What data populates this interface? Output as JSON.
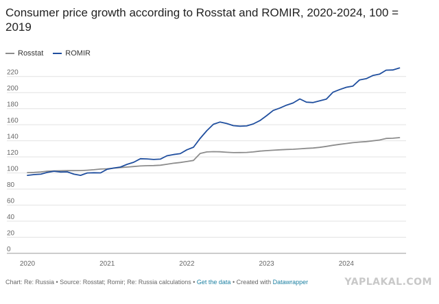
{
  "title": "Consumer price growth according to Rosstat and ROMIR, 2020-2024, 100 = 2019",
  "footer": {
    "prefix": "Chart: Re: Russia • Source: Rosstat; Romir; Re: Russia calculations • ",
    "get_data": "Get the data",
    "sep": " • Created with ",
    "tool": "Datawrapper"
  },
  "watermark": "YAPLAKAL.COM",
  "chart_data": {
    "type": "line",
    "title": "Consumer price growth according to Rosstat and ROMIR, 2020-2024, 100 = 2019",
    "xlabel": "",
    "ylabel": "",
    "xlim": [
      2020.0,
      2024.75
    ],
    "ylim": [
      0,
      230
    ],
    "x_ticks": [
      "2020",
      "2021",
      "2022",
      "2023",
      "2024"
    ],
    "y_ticks": [
      0,
      20,
      40,
      60,
      80,
      100,
      120,
      140,
      160,
      180,
      200,
      220
    ],
    "grid": "horizontal",
    "legend_position": "top-left",
    "series": [
      {
        "name": "Rosstat",
        "color": "#8c8c8c",
        "x": [
          2020.0,
          2020.083,
          2020.167,
          2020.25,
          2020.333,
          2020.417,
          2020.5,
          2020.583,
          2020.667,
          2020.75,
          2020.833,
          2020.917,
          2021.0,
          2021.083,
          2021.167,
          2021.25,
          2021.333,
          2021.417,
          2021.5,
          2021.583,
          2021.667,
          2021.75,
          2021.833,
          2021.917,
          2022.0,
          2022.083,
          2022.167,
          2022.25,
          2022.333,
          2022.417,
          2022.5,
          2022.583,
          2022.667,
          2022.75,
          2022.833,
          2022.917,
          2023.0,
          2023.083,
          2023.167,
          2023.25,
          2023.333,
          2023.417,
          2023.5,
          2023.583,
          2023.667,
          2023.75,
          2023.833,
          2023.917,
          2024.0,
          2024.083,
          2024.167,
          2024.25,
          2024.333,
          2024.417,
          2024.5,
          2024.583,
          2024.667
        ],
        "values": [
          100.4,
          100.7,
          101.3,
          102.2,
          102.5,
          102.7,
          102.9,
          102.9,
          103.0,
          103.4,
          104.0,
          104.9,
          105.2,
          106.0,
          106.7,
          107.3,
          108.0,
          108.7,
          109.0,
          109.2,
          109.6,
          110.8,
          112.1,
          113.0,
          114.2,
          115.6,
          124.3,
          126.2,
          126.5,
          126.3,
          125.7,
          125.3,
          125.4,
          125.6,
          126.2,
          127.2,
          127.8,
          128.3,
          128.8,
          129.2,
          129.5,
          130.0,
          130.6,
          131.0,
          131.9,
          133.1,
          134.4,
          135.6,
          136.6,
          137.7,
          138.4,
          139.0,
          140.0,
          141.0,
          142.9,
          143.2,
          144.0
        ]
      },
      {
        "name": "ROMIR",
        "color": "#1f4e9e",
        "x": [
          2020.0,
          2020.083,
          2020.167,
          2020.25,
          2020.333,
          2020.417,
          2020.5,
          2020.583,
          2020.667,
          2020.75,
          2020.833,
          2020.917,
          2021.0,
          2021.083,
          2021.167,
          2021.25,
          2021.333,
          2021.417,
          2021.5,
          2021.583,
          2021.667,
          2021.75,
          2021.833,
          2021.917,
          2022.0,
          2022.083,
          2022.167,
          2022.25,
          2022.333,
          2022.417,
          2022.5,
          2022.583,
          2022.667,
          2022.75,
          2022.833,
          2022.917,
          2023.0,
          2023.083,
          2023.167,
          2023.25,
          2023.333,
          2023.417,
          2023.5,
          2023.583,
          2023.667,
          2023.75,
          2023.833,
          2023.917,
          2024.0,
          2024.083,
          2024.167,
          2024.25,
          2024.333,
          2024.417,
          2024.5,
          2024.583,
          2024.667
        ],
        "values": [
          97.0,
          98.0,
          98.5,
          100.7,
          102.1,
          101.2,
          101.4,
          98.5,
          97.0,
          100.0,
          100.3,
          100.1,
          104.6,
          106.1,
          107.3,
          110.7,
          113.3,
          117.7,
          117.5,
          116.8,
          117.2,
          121.4,
          122.9,
          124.0,
          128.8,
          132.0,
          143.0,
          152.6,
          160.6,
          163.4,
          161.5,
          158.9,
          158.2,
          158.5,
          161.0,
          165.2,
          171.2,
          177.8,
          180.8,
          184.3,
          187.1,
          192.1,
          188.1,
          187.6,
          189.7,
          191.9,
          200.4,
          203.8,
          206.6,
          208.1,
          215.8,
          217.3,
          221.2,
          222.9,
          227.9,
          228.1,
          230.6
        ]
      }
    ]
  }
}
